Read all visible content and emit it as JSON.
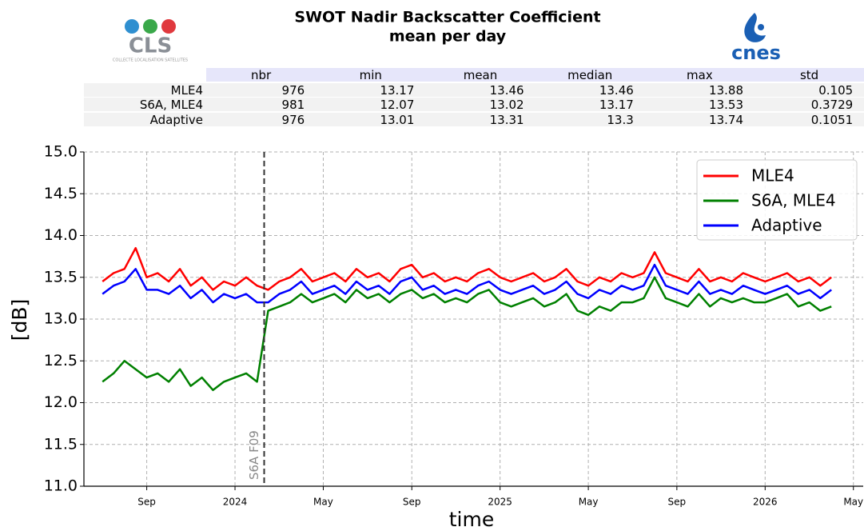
{
  "header": {
    "title": "SWOT Nadir Backscatter Coefficient",
    "subtitle": "mean per day",
    "logos": {
      "cls": "CLS",
      "cls_caption": "COLLECTE LOCALISATION SATELLITES",
      "cnes": "cnes"
    }
  },
  "table": {
    "columns": [
      "nbr",
      "min",
      "mean",
      "median",
      "max",
      "std"
    ],
    "rows": [
      {
        "name": "MLE4",
        "values": [
          976,
          13.17,
          13.46,
          13.46,
          13.88,
          0.105
        ]
      },
      {
        "name": "S6A, MLE4",
        "values": [
          981,
          12.07,
          13.02,
          13.17,
          13.53,
          0.3729
        ]
      },
      {
        "name": "Adaptive",
        "values": [
          976,
          13.01,
          13.31,
          13.3,
          13.74,
          0.1051
        ]
      }
    ]
  },
  "chart_data": {
    "type": "line",
    "xlabel": "time",
    "ylabel": "[dB]",
    "grid": true,
    "legend": "upper right",
    "xlim": [
      2023.43,
      2026.37
    ],
    "ylim": [
      11,
      15
    ],
    "xticks": [
      {
        "value": 2023.667,
        "label": "Sep"
      },
      {
        "value": 2024,
        "label": "2024"
      },
      {
        "value": 2024.333,
        "label": "May"
      },
      {
        "value": 2024.667,
        "label": "Sep"
      },
      {
        "value": 2025,
        "label": "2025"
      },
      {
        "value": 2025.333,
        "label": "May"
      },
      {
        "value": 2025.667,
        "label": "Sep"
      },
      {
        "value": 2026,
        "label": "2026"
      },
      {
        "value": 2026.333,
        "label": "May"
      }
    ],
    "yticks": [
      {
        "value": 11,
        "label": "11.0"
      },
      11.5,
      {
        "value": 12,
        "label": "12.0"
      },
      12.5,
      {
        "value": 13,
        "label": "13.0"
      },
      13.5,
      {
        "value": 14,
        "label": "14.0"
      },
      14.5,
      {
        "value": 15,
        "label": "15.0"
      }
    ],
    "annotations": [
      {
        "x": 2024.11,
        "text": "S6A F09"
      }
    ],
    "x": [
      2023.5,
      2023.542,
      2023.583,
      2023.625,
      2023.667,
      2023.708,
      2023.75,
      2023.792,
      2023.833,
      2023.875,
      2023.917,
      2023.958,
      2024.0,
      2024.042,
      2024.083,
      2024.125,
      2024.167,
      2024.208,
      2024.25,
      2024.292,
      2024.333,
      2024.375,
      2024.417,
      2024.458,
      2024.5,
      2024.542,
      2024.583,
      2024.625,
      2024.667,
      2024.708,
      2024.75,
      2024.792,
      2024.833,
      2024.875,
      2024.917,
      2024.958,
      2025.0,
      2025.042,
      2025.083,
      2025.125,
      2025.167,
      2025.208,
      2025.25,
      2025.292,
      2025.333,
      2025.375,
      2025.417,
      2025.458,
      2025.5,
      2025.542,
      2025.583,
      2025.625,
      2025.667,
      2025.708,
      2025.75,
      2025.792,
      2025.833,
      2025.875,
      2025.917,
      2025.958,
      2026.0,
      2026.042,
      2026.083,
      2026.125,
      2026.167,
      2026.208,
      2026.25
    ],
    "series": [
      {
        "name": "MLE4",
        "color": "#ff0000",
        "values": [
          13.45,
          13.55,
          13.6,
          13.85,
          13.5,
          13.55,
          13.45,
          13.6,
          13.4,
          13.5,
          13.35,
          13.45,
          13.4,
          13.5,
          13.4,
          13.35,
          13.45,
          13.5,
          13.6,
          13.45,
          13.5,
          13.55,
          13.45,
          13.6,
          13.5,
          13.55,
          13.45,
          13.6,
          13.65,
          13.5,
          13.55,
          13.45,
          13.5,
          13.45,
          13.55,
          13.6,
          13.5,
          13.45,
          13.5,
          13.55,
          13.45,
          13.5,
          13.6,
          13.45,
          13.4,
          13.5,
          13.45,
          13.55,
          13.5,
          13.55,
          13.8,
          13.55,
          13.5,
          13.45,
          13.6,
          13.45,
          13.5,
          13.45,
          13.55,
          13.5,
          13.45,
          13.5,
          13.55,
          13.45,
          13.5,
          13.4,
          13.5
        ]
      },
      {
        "name": "S6A, MLE4",
        "color": "#008000",
        "values": [
          12.25,
          12.35,
          12.5,
          12.4,
          12.3,
          12.35,
          12.25,
          12.4,
          12.2,
          12.3,
          12.15,
          12.25,
          12.3,
          12.35,
          12.25,
          13.1,
          13.15,
          13.2,
          13.3,
          13.2,
          13.25,
          13.3,
          13.2,
          13.35,
          13.25,
          13.3,
          13.2,
          13.3,
          13.35,
          13.25,
          13.3,
          13.2,
          13.25,
          13.2,
          13.3,
          13.35,
          13.2,
          13.15,
          13.2,
          13.25,
          13.15,
          13.2,
          13.3,
          13.1,
          13.05,
          13.15,
          13.1,
          13.2,
          13.2,
          13.25,
          13.5,
          13.25,
          13.2,
          13.15,
          13.3,
          13.15,
          13.25,
          13.2,
          13.25,
          13.2,
          13.2,
          13.25,
          13.3,
          13.15,
          13.2,
          13.1,
          13.15
        ]
      },
      {
        "name": "Adaptive",
        "color": "#0000ff",
        "values": [
          13.3,
          13.4,
          13.45,
          13.6,
          13.35,
          13.35,
          13.3,
          13.4,
          13.25,
          13.35,
          13.2,
          13.3,
          13.25,
          13.3,
          13.2,
          13.2,
          13.3,
          13.35,
          13.45,
          13.3,
          13.35,
          13.4,
          13.3,
          13.45,
          13.35,
          13.4,
          13.3,
          13.45,
          13.5,
          13.35,
          13.4,
          13.3,
          13.35,
          13.3,
          13.4,
          13.45,
          13.35,
          13.3,
          13.35,
          13.4,
          13.3,
          13.35,
          13.45,
          13.3,
          13.25,
          13.35,
          13.3,
          13.4,
          13.35,
          13.4,
          13.65,
          13.4,
          13.35,
          13.3,
          13.45,
          13.3,
          13.35,
          13.3,
          13.4,
          13.35,
          13.3,
          13.35,
          13.4,
          13.3,
          13.35,
          13.25,
          13.35
        ]
      }
    ]
  }
}
